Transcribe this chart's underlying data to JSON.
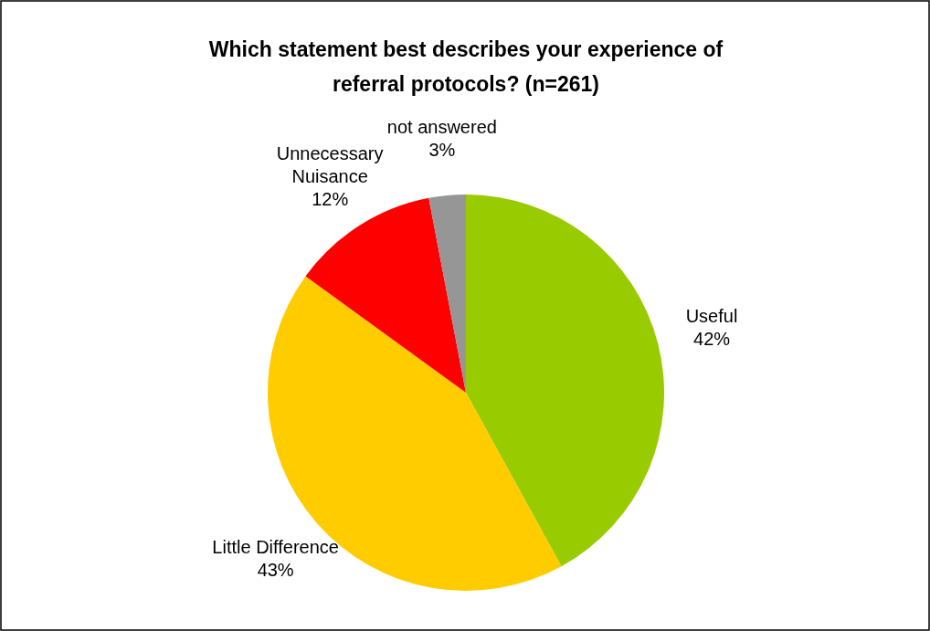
{
  "chart_data": {
    "type": "pie",
    "title": "Which statement best describes your experience of referral protocols? (n=261)",
    "categories": [
      "Useful",
      "Little Difference",
      "Unnecessary Nuisance",
      "not answered"
    ],
    "values": [
      42,
      43,
      12,
      3
    ],
    "colors": [
      "#99cc00",
      "#ffcc00",
      "#ff0000",
      "#969696"
    ],
    "value_labels": [
      "42%",
      "43%",
      "12%",
      "3%"
    ]
  }
}
